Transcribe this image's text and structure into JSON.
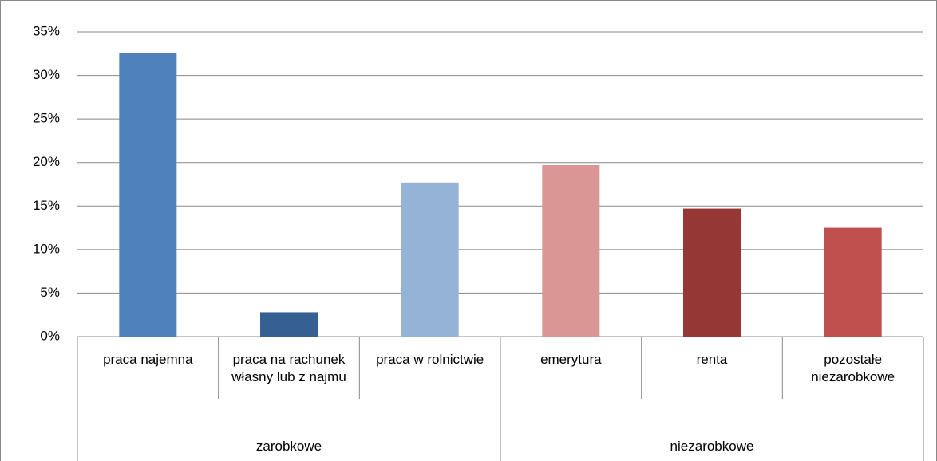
{
  "chart_data": {
    "type": "bar",
    "groups": [
      {
        "name": "zarobkowe",
        "categories": [
          "praca najemna",
          "praca na rachunek własny lub z najmu",
          "praca w rolnictwie"
        ]
      },
      {
        "name": "niezarobkowe",
        "categories": [
          "emerytura",
          "renta",
          "pozostałe niezarobkowe"
        ]
      }
    ],
    "values": [
      32.6,
      2.8,
      17.7,
      19.7,
      14.7,
      12.5
    ],
    "colors": [
      "#4f81bd",
      "#376092",
      "#95b3d7",
      "#d99694",
      "#953735",
      "#c0504d"
    ],
    "ylim": [
      0,
      35
    ],
    "yticks": [
      {
        "value": 0,
        "label": "0%"
      },
      {
        "value": 5,
        "label": "5%"
      },
      {
        "value": 10,
        "label": "10%"
      },
      {
        "value": 15,
        "label": "15%"
      },
      {
        "value": 20,
        "label": "20%"
      },
      {
        "value": 25,
        "label": "25%"
      },
      {
        "value": 30,
        "label": "30%"
      },
      {
        "value": 35,
        "label": "35%"
      }
    ],
    "grid": true
  }
}
